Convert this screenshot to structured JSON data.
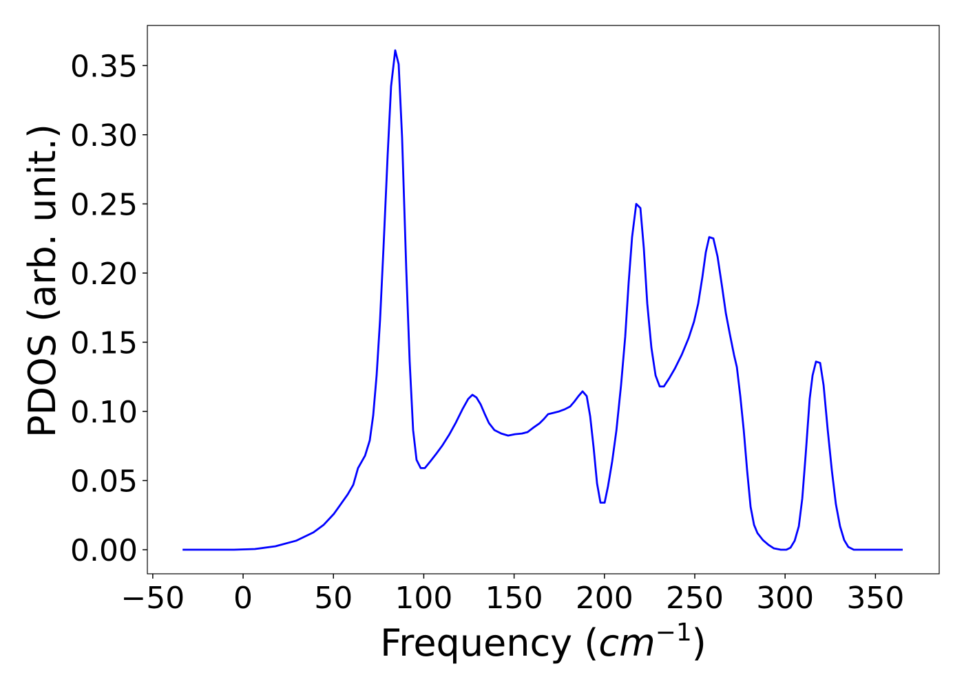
{
  "chart_data": {
    "type": "line",
    "xlabel": [
      "Frequency (",
      "cm",
      "−1",
      ")"
    ],
    "ylabel": "PDOS (arb. unit.)",
    "x": [
      -33.5,
      -5,
      6.5,
      17.9,
      29.3,
      38.9,
      44.6,
      50.3,
      54.1,
      57.9,
      61,
      63.6,
      67.5,
      70.1,
      72,
      73.9,
      75.8,
      77.7,
      80,
      81.9,
      84.2,
      86.1,
      88,
      90.3,
      92.2,
      94.1,
      96,
      98.3,
      100.6,
      103.7,
      106.7,
      110.1,
      114,
      117.8,
      121.6,
      124.6,
      126.9,
      129.2,
      131.5,
      133.8,
      136.1,
      139.1,
      142.9,
      146.7,
      150.5,
      154.3,
      157.4,
      160.4,
      164.2,
      166.5,
      168.8,
      171.9,
      174.9,
      178,
      181,
      183.3,
      185.6,
      187.9,
      190.2,
      192.1,
      194,
      195.9,
      197.8,
      200.1,
      202,
      204.3,
      206.6,
      209.2,
      211.5,
      213.4,
      215.3,
      217.6,
      219.9,
      221.8,
      223.7,
      226,
      228.3,
      230.6,
      232.9,
      235.9,
      239,
      242.8,
      246.6,
      249.6,
      251.9,
      254.2,
      256.1,
      258,
      260.3,
      262.6,
      264.9,
      267.2,
      269.4,
      271.7,
      273.3,
      275.2,
      277.1,
      279,
      280.9,
      282.8,
      284.7,
      287.7,
      290.8,
      293.8,
      297.6,
      300.7,
      303,
      305.3,
      307.6,
      309.5,
      311.4,
      313.6,
      315.2,
      317.1,
      319.4,
      321.3,
      323.6,
      325.9,
      328.1,
      330.4,
      332.7,
      335,
      338,
      365.1
    ],
    "series": [
      {
        "color": "#0000ff",
        "values": [
          0,
          0,
          0.0005,
          0.0025,
          0.0065,
          0.0125,
          0.018,
          0.026,
          0.033,
          0.04,
          0.047,
          0.059,
          0.068,
          0.079,
          0.097,
          0.126,
          0.166,
          0.218,
          0.285,
          0.335,
          0.361,
          0.351,
          0.298,
          0.203,
          0.136,
          0.0865,
          0.065,
          0.059,
          0.059,
          0.064,
          0.069,
          0.075,
          0.083,
          0.092,
          0.102,
          0.109,
          0.112,
          0.11,
          0.105,
          0.098,
          0.0915,
          0.0865,
          0.084,
          0.0825,
          0.0835,
          0.084,
          0.085,
          0.088,
          0.0915,
          0.0945,
          0.098,
          0.099,
          0.1,
          0.1015,
          0.1035,
          0.107,
          0.111,
          0.1145,
          0.111,
          0.0965,
          0.074,
          0.048,
          0.034,
          0.034,
          0.046,
          0.064,
          0.086,
          0.119,
          0.154,
          0.193,
          0.226,
          0.25,
          0.247,
          0.218,
          0.178,
          0.146,
          0.126,
          0.118,
          0.118,
          0.124,
          0.131,
          0.141,
          0.153,
          0.165,
          0.178,
          0.197,
          0.215,
          0.226,
          0.225,
          0.212,
          0.192,
          0.171,
          0.156,
          0.141,
          0.132,
          0.111,
          0.0865,
          0.057,
          0.031,
          0.018,
          0.012,
          0.007,
          0.0035,
          0.001,
          0,
          0,
          0.0015,
          0.0065,
          0.017,
          0.037,
          0.069,
          0.109,
          0.126,
          0.136,
          0.135,
          0.119,
          0.0865,
          0.057,
          0.033,
          0.017,
          0.007,
          0.002,
          0,
          0
        ]
      }
    ],
    "xlim": [
      -53,
      385.3
    ],
    "ylim": [
      -0.0174,
      0.379
    ],
    "xticks": [
      {
        "value": -50,
        "label": "−50"
      },
      0,
      50,
      100,
      150,
      200,
      250,
      300,
      350
    ],
    "yticks": [
      {
        "value": 0,
        "label": "0.00"
      },
      {
        "value": 0.05,
        "label": "0.05"
      },
      {
        "value": 0.1,
        "label": "0.10"
      },
      {
        "value": 0.15,
        "label": "0.15"
      },
      {
        "value": 0.2,
        "label": "0.20"
      },
      {
        "value": 0.25,
        "label": "0.25"
      },
      {
        "value": 0.3,
        "label": "0.30"
      },
      {
        "value": 0.35,
        "label": "0.35"
      }
    ]
  }
}
